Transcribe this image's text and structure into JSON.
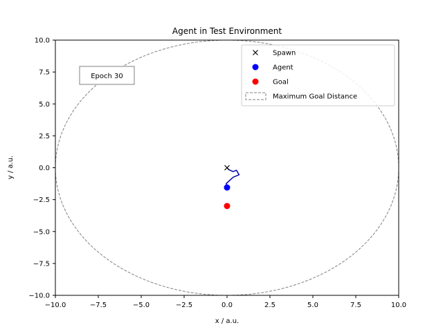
{
  "chart_data": {
    "type": "scatter",
    "title": "Agent in Test Environment",
    "xlabel": "x / a.u.",
    "ylabel": "y / a.u.",
    "xlim": [
      -10,
      10
    ],
    "ylim": [
      -10,
      10
    ],
    "xticks": [
      -10,
      -7.5,
      -5,
      -2.5,
      0,
      2.5,
      5,
      7.5,
      10
    ],
    "yticks": [
      -10,
      -7.5,
      -5,
      -2.5,
      0,
      2.5,
      5,
      7.5,
      10
    ],
    "xtick_labels": [
      "−10.0",
      "−7.5",
      "−5.0",
      "−2.5",
      "0.0",
      "2.5",
      "5.0",
      "7.5",
      "10.0"
    ],
    "ytick_labels": [
      "−10.0",
      "−7.5",
      "−5.0",
      "−2.5",
      "0.0",
      "2.5",
      "5.0",
      "7.5",
      "10.0"
    ],
    "grid": false,
    "annotation": "Epoch 30",
    "spawn": {
      "x": 0,
      "y": 0,
      "color": "#000000"
    },
    "agent": {
      "x": 0,
      "y": -1.55,
      "color": "#0000ff"
    },
    "goal": {
      "x": 0,
      "y": -3.0,
      "color": "#ff0000"
    },
    "trajectory": {
      "x": [
        0,
        0.1,
        0.35,
        0.55,
        0.7,
        0.35,
        -0.05,
        0.0
      ],
      "y": [
        0,
        -0.15,
        -0.3,
        -0.2,
        -0.55,
        -0.75,
        -1.25,
        -1.55
      ],
      "color": "#0000aa"
    },
    "max_goal_distance": {
      "center": [
        0,
        0
      ],
      "radius": 10,
      "color": "#808080"
    },
    "legend_position": "top-right",
    "legend": [
      {
        "label": "Spawn",
        "marker": "x",
        "color": "#000000"
      },
      {
        "label": "Agent",
        "marker": "circle",
        "color": "#0000ff"
      },
      {
        "label": "Goal",
        "marker": "circle",
        "color": "#ff0000"
      },
      {
        "label": "Maximum Goal Distance",
        "marker": "dashed-box",
        "color": "#808080"
      }
    ]
  }
}
